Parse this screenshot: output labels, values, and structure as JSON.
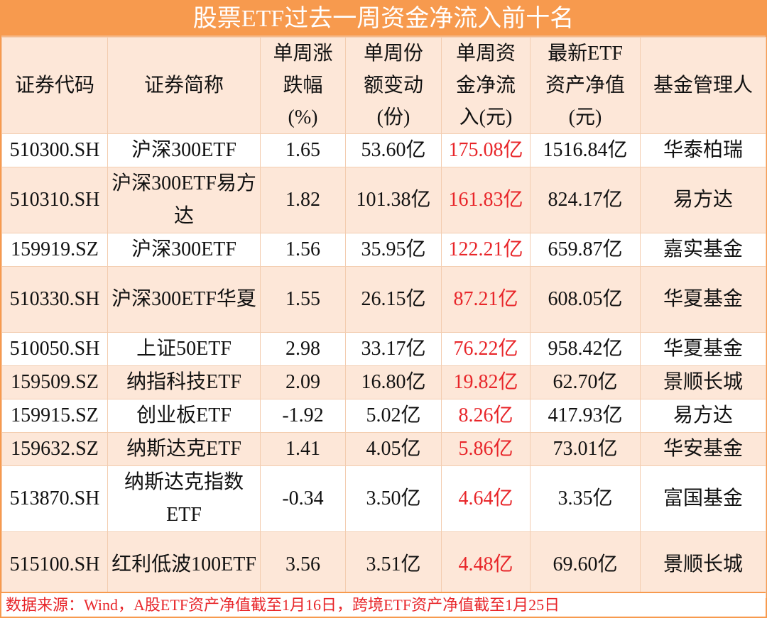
{
  "title": "股票ETF过去一周资金净流入前十名",
  "headers": [
    "证券代码",
    "证券简称",
    "单周涨跌幅(%)",
    "单周份额变动(份)",
    "单周资金净流入(元)",
    "最新ETF资产净值(元)",
    "基金管理人"
  ],
  "header_lines": [
    [
      "证券代码"
    ],
    [
      "证券简称"
    ],
    [
      "单周涨",
      "跌幅",
      "(%)"
    ],
    [
      "单周份",
      "额变动",
      "(份)"
    ],
    [
      "单周资",
      "金净流",
      "入(元)"
    ],
    [
      "最新ETF",
      "资产净值",
      "(元)"
    ],
    [
      "基金管理人"
    ]
  ],
  "rows": [
    {
      "code": "510300.SH",
      "name": "沪深300ETF",
      "change": "1.65",
      "shares": "53.60亿",
      "inflow": "175.08亿",
      "nav": "1516.84亿",
      "manager": "华泰柏瑞"
    },
    {
      "code": "510310.SH",
      "name": "沪深300ETF易方达",
      "change": "1.82",
      "shares": "101.38亿",
      "inflow": "161.83亿",
      "nav": "824.17亿",
      "manager": "易方达"
    },
    {
      "code": "159919.SZ",
      "name": "沪深300ETF",
      "change": "1.56",
      "shares": "35.95亿",
      "inflow": "122.21亿",
      "nav": "659.87亿",
      "manager": "嘉实基金"
    },
    {
      "code": "510330.SH",
      "name": "沪深300ETF华夏",
      "change": "1.55",
      "shares": "26.15亿",
      "inflow": "87.21亿",
      "nav": "608.05亿",
      "manager": "华夏基金"
    },
    {
      "code": "510050.SH",
      "name": "上证50ETF",
      "change": "2.98",
      "shares": "33.17亿",
      "inflow": "76.22亿",
      "nav": "958.42亿",
      "manager": "华夏基金"
    },
    {
      "code": "159509.SZ",
      "name": "纳指科技ETF",
      "change": "2.09",
      "shares": "16.80亿",
      "inflow": "19.82亿",
      "nav": "62.70亿",
      "manager": "景顺长城"
    },
    {
      "code": "159915.SZ",
      "name": "创业板ETF",
      "change": "-1.92",
      "shares": "5.02亿",
      "inflow": "8.26亿",
      "nav": "417.93亿",
      "manager": "易方达"
    },
    {
      "code": "159632.SZ",
      "name": "纳斯达克ETF",
      "change": "1.41",
      "shares": "4.05亿",
      "inflow": "5.86亿",
      "nav": "73.01亿",
      "manager": "华安基金"
    },
    {
      "code": "513870.SH",
      "name": "纳斯达克指数ETF",
      "change": "-0.34",
      "shares": "3.50亿",
      "inflow": "4.64亿",
      "nav": "3.35亿",
      "manager": "富国基金"
    },
    {
      "code": "515100.SH",
      "name": "红利低波100ETF",
      "change": "3.56",
      "shares": "3.51亿",
      "inflow": "4.48亿",
      "nav": "69.60亿",
      "manager": "景顺长城"
    }
  ],
  "footer": "数据来源：Wind，A股ETF资产净值截至1月16日，跨境ETF资产净值截至1月25日",
  "colors": {
    "accent": "#f79a4e",
    "header_bg": "#fde7d8",
    "inflow": "#e8262a"
  }
}
